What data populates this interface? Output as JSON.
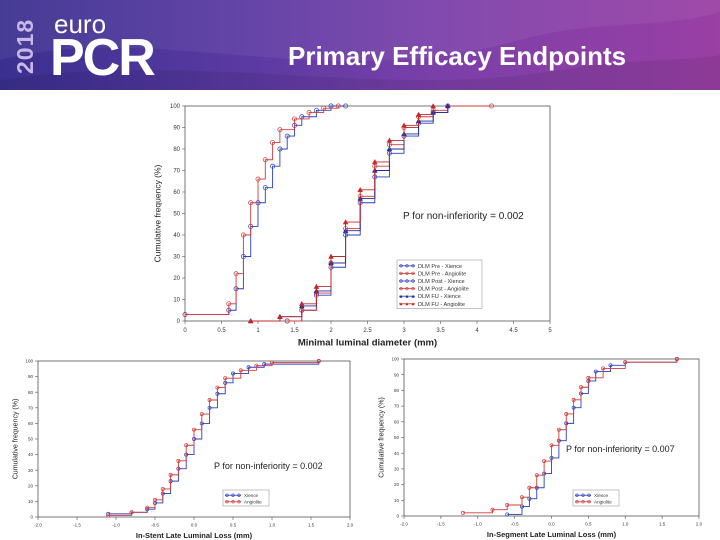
{
  "header": {
    "year": "2018",
    "logo_top": "euro",
    "logo_main": "PCR",
    "title": "Primary Efficacy Endpoints"
  },
  "colors": {
    "blue": "#2b3fbf",
    "red": "#d23a3a",
    "banner": "#5c3aa3"
  },
  "chart_data": [
    {
      "id": "top",
      "type": "line",
      "xlabel": "Minimal luminal diameter (mm)",
      "ylabel": "Cumulative frequency (%)",
      "xlim": [
        0,
        5
      ],
      "ylim": [
        0,
        100
      ],
      "xticks": [
        "0",
        "0.5",
        "1",
        "1.5",
        "2",
        "2.5",
        "3",
        "3.5",
        "4",
        "4.5",
        "5"
      ],
      "yticks": [
        "0",
        "10",
        "20",
        "30",
        "40",
        "50",
        "60",
        "70",
        "80",
        "90",
        "100"
      ],
      "annotation": "P for non-inferiority = 0.002",
      "series": [
        {
          "name": "DLM Pre - Xience",
          "color": "#2b3fbf",
          "marker": "circle",
          "x": [
            0,
            0.6,
            0.7,
            0.8,
            0.9,
            1.0,
            1.1,
            1.2,
            1.3,
            1.4,
            1.5,
            1.6,
            1.8,
            2.0,
            2.2
          ],
          "y": [
            3,
            5,
            15,
            30,
            44,
            55,
            62,
            72,
            80,
            86,
            91,
            95,
            98,
            100,
            100
          ]
        },
        {
          "name": "DLM Pre - Angiolite",
          "color": "#d23a3a",
          "marker": "circle",
          "x": [
            0,
            0.6,
            0.7,
            0.8,
            0.9,
            1.0,
            1.1,
            1.2,
            1.3,
            1.5,
            1.7,
            1.9,
            2.1
          ],
          "y": [
            3,
            8,
            22,
            40,
            55,
            66,
            75,
            83,
            89,
            94,
            97,
            99,
            100
          ]
        },
        {
          "name": "DLM Post - Xience",
          "color": "#2b3fbf",
          "marker": "circle",
          "x": [
            1.4,
            1.6,
            1.8,
            2.0,
            2.2,
            2.4,
            2.6,
            2.8,
            3.0,
            3.2,
            3.4,
            3.6
          ],
          "y": [
            0,
            5,
            12,
            25,
            40,
            55,
            67,
            78,
            86,
            92,
            97,
            100
          ]
        },
        {
          "name": "DLM Post - Angiolite",
          "color": "#d23a3a",
          "marker": "circle",
          "x": [
            1.4,
            1.6,
            1.8,
            2.0,
            2.2,
            2.4,
            2.6,
            2.8,
            3.0,
            3.2,
            3.4,
            3.6,
            4.2
          ],
          "y": [
            0,
            5,
            13,
            27,
            43,
            58,
            72,
            82,
            90,
            95,
            98,
            100,
            100
          ]
        },
        {
          "name": "DLM FU - Xience",
          "color": "#1f2f9a",
          "marker": "triangle",
          "x": [
            0.9,
            1.3,
            1.6,
            1.8,
            2.0,
            2.2,
            2.4,
            2.6,
            2.8,
            3.0,
            3.2,
            3.4,
            3.6
          ],
          "y": [
            0,
            2,
            7,
            14,
            27,
            42,
            57,
            70,
            80,
            87,
            93,
            97,
            100
          ]
        },
        {
          "name": "DLM FU - Angiolite",
          "color": "#c42828",
          "marker": "triangle",
          "x": [
            0.9,
            1.3,
            1.6,
            1.8,
            2.0,
            2.2,
            2.4,
            2.6,
            2.8,
            3.0,
            3.2,
            3.4
          ],
          "y": [
            0,
            2,
            8,
            16,
            30,
            46,
            61,
            74,
            84,
            91,
            96,
            100
          ]
        }
      ]
    },
    {
      "id": "bl",
      "type": "line",
      "xlabel": "In-Stent Late Luminal Loss (mm)",
      "ylabel": "Cumulative frequency (%)",
      "xlim": [
        -2,
        2
      ],
      "ylim": [
        0,
        100
      ],
      "xticks": [
        "-2.0",
        "-1.5",
        "-1.0",
        "-0.5",
        "0.0",
        "0.5",
        "1.0",
        "1.5",
        "2.0"
      ],
      "yticks": [
        "0",
        "10",
        "20",
        "30",
        "40",
        "50",
        "60",
        "70",
        "80",
        "90",
        "100"
      ],
      "annotation": "P for non-inferiority = 0.002",
      "series": [
        {
          "name": "Xience",
          "color": "#2b3fbf",
          "marker": "circle",
          "x": [
            -1.1,
            -0.8,
            -0.6,
            -0.5,
            -0.4,
            -0.3,
            -0.2,
            -0.1,
            0.0,
            0.1,
            0.2,
            0.3,
            0.4,
            0.5,
            0.7,
            0.9,
            1.6
          ],
          "y": [
            2,
            3,
            5,
            9,
            15,
            23,
            31,
            40,
            50,
            60,
            70,
            79,
            86,
            92,
            96,
            98,
            100
          ]
        },
        {
          "name": "Angiolite",
          "color": "#d23a3a",
          "marker": "circle",
          "x": [
            -1.1,
            -0.8,
            -0.6,
            -0.5,
            -0.4,
            -0.3,
            -0.2,
            -0.1,
            0.0,
            0.1,
            0.2,
            0.3,
            0.4,
            0.6,
            0.8,
            1.0,
            1.6
          ],
          "y": [
            1,
            3,
            6,
            11,
            18,
            27,
            36,
            46,
            56,
            66,
            75,
            83,
            89,
            94,
            97,
            99,
            100
          ]
        }
      ]
    },
    {
      "id": "br",
      "type": "line",
      "xlabel": "In-Segment Late Luminal Loss (mm)",
      "ylabel": "Cumulative frequency (%)",
      "xlim": [
        -2,
        2
      ],
      "ylim": [
        0,
        100
      ],
      "xticks": [
        "-2.0",
        "-1.5",
        "-1.0",
        "-0.5",
        "0.0",
        "0.5",
        "1.0",
        "1.5",
        "2.0"
      ],
      "yticks": [
        "0",
        "10",
        "20",
        "30",
        "40",
        "50",
        "60",
        "70",
        "80",
        "90",
        "100"
      ],
      "annotation": "P for non-inferiority = 0.007",
      "series": [
        {
          "name": "Xience",
          "color": "#2b3fbf",
          "marker": "circle",
          "x": [
            -0.6,
            -0.4,
            -0.3,
            -0.2,
            -0.1,
            0.0,
            0.1,
            0.2,
            0.3,
            0.4,
            0.5,
            0.6,
            0.8,
            1.0,
            1.7
          ],
          "y": [
            1,
            6,
            11,
            18,
            27,
            37,
            48,
            59,
            69,
            78,
            86,
            92,
            96,
            98,
            100
          ]
        },
        {
          "name": "Angiolite",
          "color": "#d23a3a",
          "marker": "circle",
          "x": [
            -1.2,
            -0.8,
            -0.6,
            -0.4,
            -0.3,
            -0.2,
            -0.1,
            0.0,
            0.1,
            0.2,
            0.3,
            0.4,
            0.5,
            0.7,
            1.0,
            1.7
          ],
          "y": [
            2,
            4,
            7,
            12,
            18,
            26,
            35,
            45,
            55,
            65,
            74,
            82,
            88,
            94,
            98,
            100
          ]
        }
      ]
    }
  ]
}
